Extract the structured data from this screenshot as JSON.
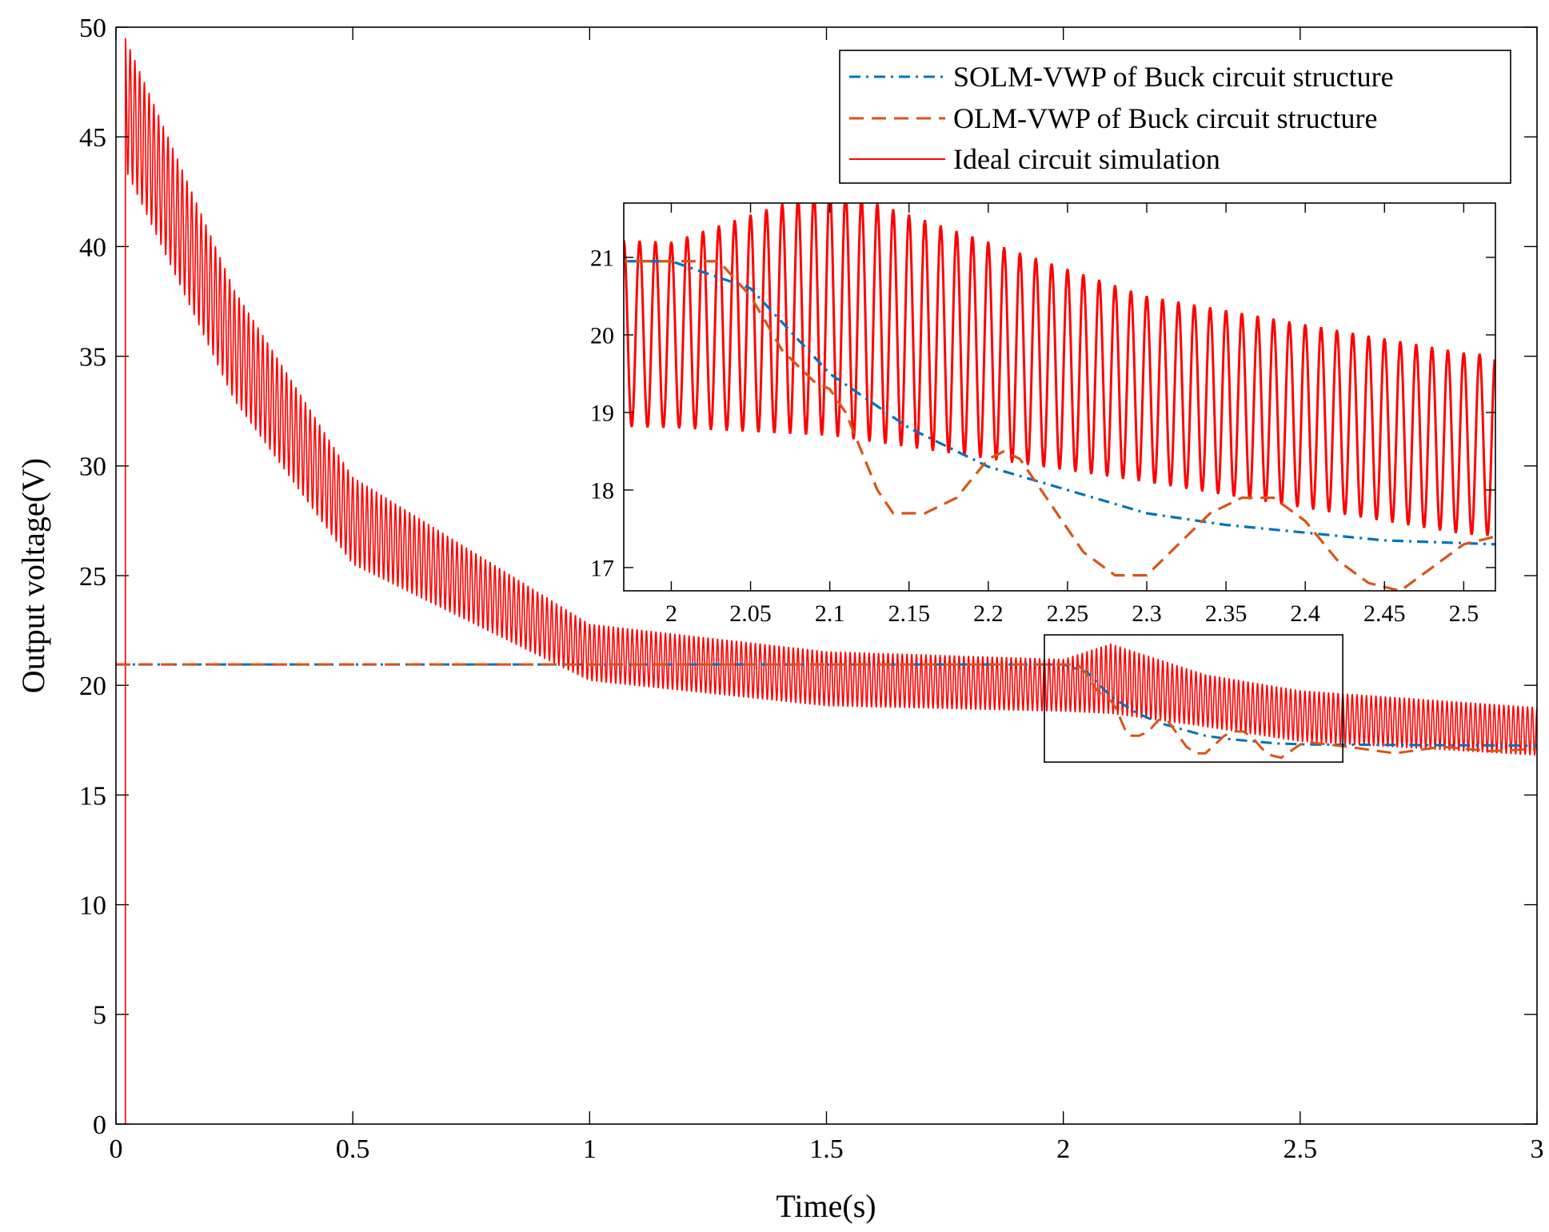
{
  "chart_data": {
    "type": "line",
    "xlabel": "Time(s)",
    "ylabel": "Output voltage(V)",
    "xlim": [
      0,
      3
    ],
    "ylim": [
      0,
      50
    ],
    "xticks": [
      "0",
      "0.5",
      "1",
      "1.5",
      "2",
      "2.5",
      "3"
    ],
    "yticks": [
      "0",
      "5",
      "10",
      "15",
      "20",
      "25",
      "30",
      "35",
      "40",
      "45",
      "50"
    ],
    "legend_position": "top-right",
    "series": [
      {
        "name": "SOLM-VWP of Buck circuit structure",
        "style": "dash-dot",
        "color": "#0072BD",
        "x": [
          0,
          2.0,
          2.05,
          2.1,
          2.15,
          2.2,
          2.25,
          2.3,
          2.35,
          2.4,
          2.45,
          2.52,
          3.0
        ],
        "y": [
          20.95,
          20.95,
          20.6,
          19.5,
          18.8,
          18.3,
          18.0,
          17.7,
          17.55,
          17.45,
          17.35,
          17.3,
          17.25
        ]
      },
      {
        "name": "OLM-VWP of Buck circuit structure",
        "style": "dashed",
        "color": "#D95319",
        "x": [
          0,
          2.03,
          2.05,
          2.07,
          2.08,
          2.09,
          2.1,
          2.11,
          2.12,
          2.13,
          2.14,
          2.16,
          2.18,
          2.2,
          2.21,
          2.22,
          2.24,
          2.26,
          2.28,
          2.3,
          2.32,
          2.34,
          2.36,
          2.38,
          2.4,
          2.42,
          2.44,
          2.46,
          2.48,
          2.5,
          2.52,
          2.6,
          2.7,
          2.8,
          2.9,
          3.0
        ],
        "y": [
          20.95,
          20.95,
          20.5,
          19.8,
          19.6,
          19.4,
          19.3,
          19.0,
          18.5,
          18.0,
          17.7,
          17.7,
          17.9,
          18.4,
          18.5,
          18.4,
          17.8,
          17.2,
          16.9,
          16.9,
          17.3,
          17.7,
          17.9,
          17.9,
          17.6,
          17.1,
          16.8,
          16.7,
          17.0,
          17.3,
          17.4,
          17.2,
          16.9,
          17.2,
          17.0,
          17.1
        ]
      },
      {
        "name": "Ideal circuit simulation",
        "style": "solid",
        "color": "#FF0000",
        "description_points": {
          "start_time": 0.02,
          "peak": 49.2,
          "envelope_center": [
            [
              0.02,
              46.5
            ],
            [
              0.25,
              35.5
            ],
            [
              0.5,
              27.5
            ],
            [
              1.0,
              21.5
            ],
            [
              1.5,
              20.3
            ],
            [
              2.0,
              20.0
            ],
            [
              2.1,
              20.3
            ],
            [
              2.3,
              19.3
            ],
            [
              2.5,
              18.6
            ],
            [
              3.0,
              17.9
            ]
          ],
          "ripple_amplitude": [
            [
              0.02,
              3.0
            ],
            [
              0.5,
              2.0
            ],
            [
              1.0,
              1.3
            ],
            [
              2.0,
              1.2
            ],
            [
              2.1,
              1.6
            ],
            [
              2.3,
              1.2
            ],
            [
              3.0,
              1.1
            ]
          ]
        }
      }
    ],
    "inset": {
      "xlim": [
        1.97,
        2.52
      ],
      "ylim": [
        16.7,
        21.7
      ],
      "xticks": [
        "2",
        "2.05",
        "2.1",
        "2.15",
        "2.2",
        "2.25",
        "2.3",
        "2.35",
        "2.4",
        "2.45",
        "2.5"
      ],
      "yticks": [
        "17",
        "18",
        "19",
        "20",
        "21"
      ],
      "zoom_region": {
        "x": [
          1.96,
          2.59
        ],
        "y": [
          16.5,
          22.3
        ]
      }
    }
  }
}
